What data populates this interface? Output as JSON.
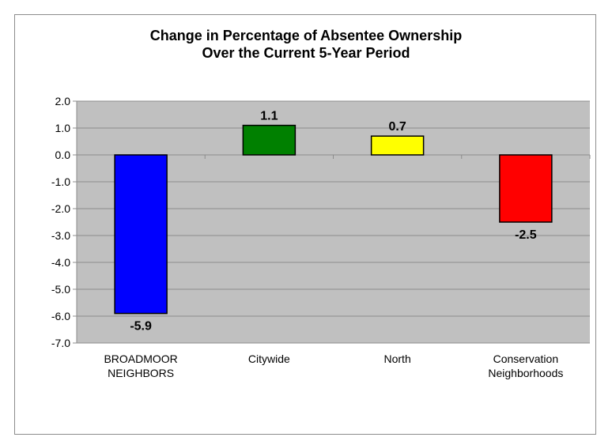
{
  "chart_data": {
    "type": "bar",
    "title_lines": [
      "Change in Percentage of Absentee Ownership",
      "Over the Current 5-Year Period"
    ],
    "categories": [
      [
        "BROADMOOR",
        "NEIGHBORS"
      ],
      [
        "Citywide"
      ],
      [
        "North"
      ],
      [
        "Conservation",
        "Neighborhoods"
      ]
    ],
    "values": [
      -5.9,
      1.1,
      0.7,
      -2.5
    ],
    "value_labels": [
      "-5.9",
      "1.1",
      "0.7",
      "-2.5"
    ],
    "bar_colors": [
      "#0000ff",
      "#008000",
      "#ffff00",
      "#ff0000"
    ],
    "ylim": [
      -7.0,
      2.0
    ],
    "ytick_labels": [
      "2.0",
      "1.0",
      "0.0",
      "-1.0",
      "-2.0",
      "-3.0",
      "-4.0",
      "-5.0",
      "-6.0",
      "-7.0"
    ],
    "ytick_values": [
      2,
      1,
      0,
      -1,
      -2,
      -3,
      -4,
      -5,
      -6,
      -7
    ],
    "plot_background": "#c0c0c0",
    "grid": true,
    "legend": "none"
  }
}
